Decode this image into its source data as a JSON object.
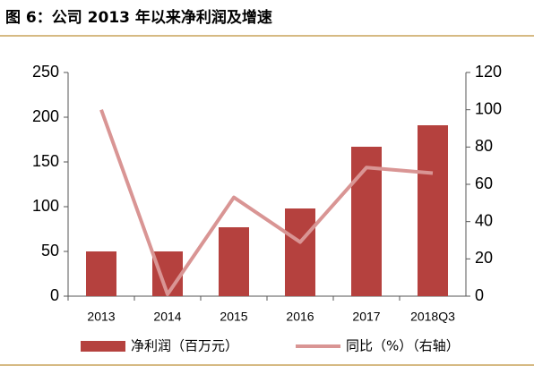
{
  "chart_data": {
    "type": "bar",
    "title": "图 6：公司 2013 年以来净利润及增速",
    "categories": [
      "2013",
      "2014",
      "2015",
      "2016",
      "2017",
      "2018Q3"
    ],
    "series": [
      {
        "name": "净利润（百万元）",
        "type": "bar",
        "color": "#b5413e",
        "values": [
          50,
          50,
          77,
          98,
          167,
          191
        ]
      },
      {
        "name": "同比（%）（右轴）",
        "type": "line",
        "axis": "y2",
        "color": "#d99594",
        "values": [
          100,
          1,
          53,
          29,
          69,
          66
        ]
      }
    ],
    "ylim": [
      0,
      250
    ],
    "yticks": [
      0,
      50,
      100,
      150,
      200,
      250
    ],
    "y2lim": [
      0,
      120
    ],
    "y2ticks": [
      0,
      20,
      40,
      60,
      80,
      100,
      120
    ],
    "grid": false,
    "legend": "bottom"
  }
}
